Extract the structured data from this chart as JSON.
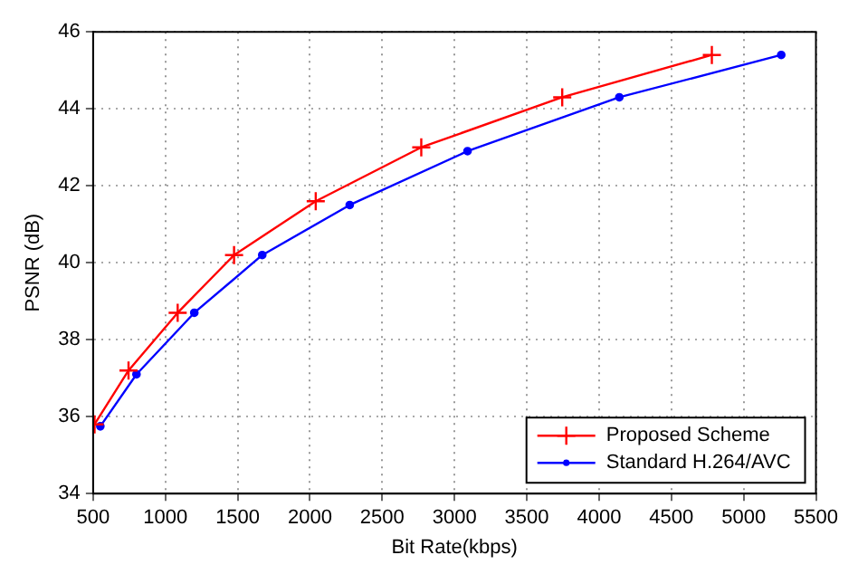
{
  "chart_data": {
    "type": "line",
    "xlabel": "Bit Rate(kbps)",
    "ylabel": "PSNR (dB)",
    "xlim": [
      500,
      5500
    ],
    "xticks": [
      500,
      1000,
      1500,
      2000,
      2500,
      3000,
      3500,
      4000,
      4500,
      5000,
      5500
    ],
    "ylim": [
      34,
      46
    ],
    "yticks": [
      34,
      36,
      38,
      40,
      42,
      44,
      46
    ],
    "grid": true,
    "legend": "bottom right",
    "line_style": "solid",
    "series": [
      {
        "name": "Proposed Scheme",
        "color": "#ff0000",
        "marker": "cross",
        "x": [
          510,
          745,
          1085,
          1475,
          2040,
          2770,
          3745,
          4780
        ],
        "values": [
          35.8,
          37.2,
          38.7,
          40.2,
          41.6,
          43.0,
          44.3,
          45.4
        ]
      },
      {
        "name": "Standard H.264/AVC",
        "color": "#0000ff",
        "marker": "circle",
        "x": [
          550,
          800,
          1200,
          1670,
          2275,
          3090,
          4140,
          5260
        ],
        "values": [
          35.75,
          37.1,
          38.7,
          40.2,
          41.5,
          42.9,
          44.3,
          45.4
        ]
      }
    ]
  }
}
